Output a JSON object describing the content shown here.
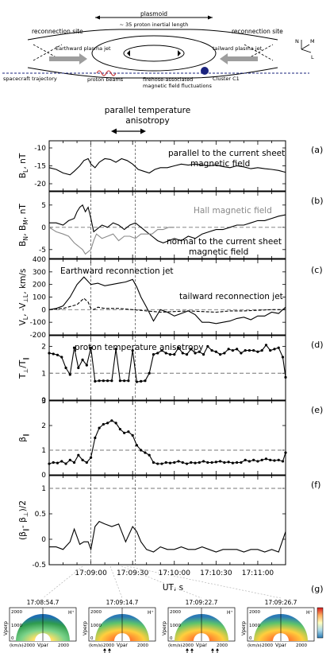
{
  "schematic": {
    "plasmoid_label": "plasmoid",
    "length_label": "~ 35 proton inertial length",
    "left_site_label": "reconnection site",
    "right_site_label": "reconnection site",
    "earthward_jet_label": "Earthward plasma jet",
    "tailward_jet_label": "tailward plasma jet",
    "trajectory_label": "spacecraft trajectory",
    "proton_beams_label": "proton beams",
    "fluctuations_label": "firehose-associated magnetic field fluctuations",
    "cluster_label": "Cluster C1",
    "axis_n": "N",
    "axis_m": "M",
    "axis_l": "L",
    "colors": {
      "trajectory": "#1a237e",
      "cluster_dot": "#1a237e",
      "beams": "#c62828"
    }
  },
  "annotations": {
    "parallel_anisotropy": "parallel temperature anisotropy",
    "parallel_anisotropy_l1": "parallel temperature",
    "parallel_anisotropy_l2": "anisotropy"
  },
  "time_axis": {
    "tick_labels": [
      "17:09:00",
      "17:09:30",
      "17:10:00",
      "17:10:30",
      "17:11:00"
    ],
    "xlabel": "UT, s",
    "range_s": [
      0,
      170
    ],
    "tick_positions_s": [
      30,
      60,
      90,
      120,
      150
    ],
    "vertical_markers_s": [
      30,
      62
    ]
  },
  "chart_data": [
    {
      "type": "line",
      "panel": "(a)",
      "ylabel": "B_L, nT",
      "ylim": [
        -22,
        -8
      ],
      "yticks": [
        -20,
        -15,
        -10
      ],
      "annotation_l1": "parallel to the current sheet",
      "annotation_l2": "magnetic field",
      "series": [
        {
          "x": [
            0,
            5,
            10,
            15,
            18,
            22,
            25,
            28,
            30,
            33,
            36,
            40,
            44,
            48,
            52,
            56,
            60,
            64,
            68,
            72,
            76,
            80,
            85,
            90,
            95,
            100,
            105,
            110,
            115,
            120,
            125,
            130,
            135,
            140,
            145,
            150,
            155,
            160,
            165,
            170
          ],
          "values": [
            -15.5,
            -16,
            -17,
            -17.5,
            -16.5,
            -15,
            -13.5,
            -13,
            -14.5,
            -15.5,
            -14,
            -13,
            -13.2,
            -14,
            -13,
            -13.5,
            -14.5,
            -16,
            -16.5,
            -17,
            -16,
            -15.5,
            -15.5,
            -15,
            -14.5,
            -14.8,
            -14.5,
            -14.8,
            -15,
            -14.8,
            -15.2,
            -15.5,
            -15,
            -15.3,
            -15.8,
            -15.5,
            -15.8,
            -16,
            -16.3,
            -16.8
          ]
        }
      ]
    },
    {
      "type": "line",
      "panel": "(b)",
      "ylabel": "B_N, B_M, nT",
      "ylim": [
        -7,
        8
      ],
      "yticks": [
        -5,
        0,
        5
      ],
      "annotation_grey": "Hall magnetic field",
      "annotation_l1": "normal to the current sheet",
      "annotation_l2": "magnetic field",
      "series": [
        {
          "name": "B_N",
          "x": [
            0,
            5,
            10,
            14,
            18,
            20,
            22,
            24,
            26,
            28,
            30,
            32,
            34,
            38,
            42,
            46,
            50,
            54,
            58,
            62,
            66,
            70,
            74,
            78,
            82,
            86,
            90,
            95,
            100,
            105,
            110,
            115,
            120,
            125,
            130,
            135,
            140,
            145,
            150,
            155,
            160,
            165,
            170
          ],
          "values": [
            1,
            1,
            0.5,
            1.5,
            2,
            3.5,
            4.5,
            5,
            3.5,
            4.5,
            2,
            -1,
            -0.5,
            0.5,
            0,
            1,
            0.5,
            -0.5,
            0.5,
            1,
            0,
            -1,
            -2,
            -3,
            -3.5,
            -3,
            -2.5,
            -3,
            -2,
            -2.5,
            -1.5,
            -1,
            -0.5,
            -0.5,
            0,
            0.5,
            0.5,
            1,
            1.5,
            1.5,
            2,
            2.5,
            2.8
          ]
        },
        {
          "name": "B_M",
          "x": [
            0,
            5,
            10,
            14,
            18,
            20,
            22,
            24,
            26,
            28,
            30,
            32,
            34,
            38,
            42,
            46,
            50,
            54,
            58,
            62,
            66,
            70,
            74,
            78,
            82,
            86,
            90
          ],
          "values": [
            0,
            -1,
            -1.5,
            -2,
            -3.5,
            -4,
            -4.5,
            -5,
            -6,
            -5.5,
            -5,
            -3,
            -1.5,
            -2.5,
            -2,
            -1.5,
            -3,
            -2,
            -2,
            -2.5,
            -1.5,
            -1.5,
            -1.5,
            -0.5,
            -0.5,
            0,
            0
          ]
        }
      ]
    },
    {
      "type": "line",
      "panel": "(c)",
      "ylabel": "V_L, -V_⊥L, km/s",
      "ylim": [
        -200,
        400
      ],
      "yticks": [
        -200,
        -100,
        0,
        100,
        200,
        300,
        400
      ],
      "annotation_earthward": "Earthward reconnection jet",
      "annotation_tailward": "tailward reconnection jet",
      "series": [
        {
          "name": "V_L",
          "x": [
            0,
            5,
            10,
            15,
            20,
            25,
            30,
            35,
            40,
            45,
            50,
            55,
            60,
            63,
            66,
            70,
            75,
            80,
            85,
            90,
            95,
            100,
            105,
            110,
            115,
            120,
            125,
            130,
            135,
            140,
            145,
            150,
            155,
            160,
            165,
            170
          ],
          "values": [
            0,
            10,
            30,
            100,
            200,
            260,
            200,
            210,
            190,
            200,
            210,
            220,
            240,
            180,
            100,
            20,
            -90,
            0,
            -20,
            -50,
            -30,
            -10,
            -40,
            -100,
            -100,
            -110,
            -100,
            -90,
            -70,
            -60,
            -80,
            -50,
            -50,
            -20,
            -30,
            20
          ]
        },
        {
          "name": "-V_⊥L",
          "x": [
            0,
            10,
            20,
            25,
            28,
            30,
            32,
            35,
            40,
            50,
            60,
            70,
            80,
            90,
            100,
            110,
            120,
            130,
            140,
            150,
            160,
            170
          ],
          "values": [
            0,
            10,
            40,
            90,
            60,
            10,
            0,
            20,
            10,
            10,
            0,
            -10,
            -20,
            -15,
            -10,
            -15,
            -20,
            -10,
            -10,
            -5,
            0,
            0
          ]
        }
      ]
    },
    {
      "type": "line",
      "panel": "(d)",
      "ylabel": "T_⊥/T_∥",
      "ylim": [
        0,
        2.4
      ],
      "yticks": [
        0,
        1,
        2
      ],
      "reference_line": 1,
      "annotation": "proton temperature anisotropy",
      "series": [
        {
          "x": [
            0,
            3,
            6,
            9,
            12,
            15,
            18,
            21,
            24,
            27,
            30,
            33,
            36,
            39,
            42,
            45,
            48,
            51,
            54,
            57,
            60,
            63,
            66,
            69,
            72,
            75,
            78,
            81,
            84,
            87,
            90,
            93,
            96,
            99,
            102,
            105,
            108,
            111,
            114,
            117,
            120,
            123,
            126,
            129,
            132,
            135,
            138,
            141,
            144,
            147,
            150,
            153,
            156,
            159,
            162,
            165,
            168,
            170
          ],
          "values": [
            1.75,
            1.72,
            1.68,
            1.6,
            1.2,
            0.95,
            1.95,
            1.2,
            1.5,
            1.3,
            1.95,
            0.7,
            0.72,
            0.72,
            0.72,
            0.72,
            1.9,
            0.72,
            0.72,
            0.72,
            1.85,
            0.68,
            0.7,
            0.72,
            1.0,
            1.7,
            1.75,
            1.85,
            1.75,
            1.7,
            1.7,
            1.95,
            1.75,
            1.7,
            1.9,
            1.75,
            1.8,
            1.7,
            2.0,
            1.85,
            1.8,
            1.7,
            1.75,
            1.9,
            1.85,
            1.9,
            1.75,
            1.85,
            1.85,
            1.85,
            1.8,
            1.85,
            2.05,
            1.85,
            1.9,
            1.95,
            1.6,
            0.85
          ]
        }
      ]
    },
    {
      "type": "line",
      "panel": "(e)",
      "ylabel": "β_∥",
      "ylim": [
        0,
        3
      ],
      "yticks": [
        0,
        1,
        2,
        3
      ],
      "reference_line": 1,
      "series": [
        {
          "x": [
            0,
            3,
            6,
            9,
            12,
            15,
            18,
            21,
            24,
            27,
            30,
            33,
            36,
            39,
            42,
            45,
            48,
            51,
            54,
            57,
            60,
            63,
            66,
            69,
            72,
            75,
            78,
            81,
            84,
            87,
            90,
            93,
            96,
            99,
            102,
            105,
            108,
            111,
            114,
            117,
            120,
            123,
            126,
            129,
            132,
            135,
            138,
            141,
            144,
            147,
            150,
            153,
            156,
            159,
            162,
            165,
            168,
            170
          ],
          "values": [
            0.45,
            0.5,
            0.48,
            0.55,
            0.45,
            0.6,
            0.5,
            0.8,
            0.6,
            0.5,
            0.7,
            1.5,
            1.9,
            2.05,
            2.1,
            2.2,
            2.1,
            1.85,
            1.7,
            1.75,
            1.6,
            1.2,
            1.0,
            0.9,
            0.8,
            0.5,
            0.45,
            0.45,
            0.5,
            0.48,
            0.5,
            0.55,
            0.5,
            0.45,
            0.5,
            0.48,
            0.5,
            0.55,
            0.5,
            0.5,
            0.52,
            0.55,
            0.5,
            0.52,
            0.48,
            0.5,
            0.5,
            0.6,
            0.55,
            0.6,
            0.55,
            0.6,
            0.65,
            0.6,
            0.58,
            0.6,
            0.55,
            0.9
          ]
        }
      ]
    },
    {
      "type": "line",
      "panel": "(f)",
      "ylabel": "(β_∥ - β_⊥)/2",
      "ylim": [
        -0.5,
        1.25
      ],
      "yticks": [
        -0.5,
        0,
        0.5,
        1
      ],
      "reference_line": 1,
      "series": [
        {
          "x": [
            0,
            5,
            10,
            15,
            18,
            22,
            25,
            28,
            30,
            33,
            36,
            40,
            45,
            50,
            55,
            60,
            63,
            66,
            70,
            75,
            80,
            85,
            90,
            95,
            100,
            105,
            110,
            115,
            120,
            125,
            130,
            135,
            140,
            145,
            150,
            155,
            160,
            165,
            170
          ],
          "values": [
            -0.15,
            -0.15,
            -0.2,
            -0.05,
            0.2,
            -0.1,
            -0.05,
            -0.05,
            -0.2,
            0.25,
            0.35,
            0.3,
            0.25,
            0.3,
            -0.05,
            0.25,
            0.15,
            -0.05,
            -0.2,
            -0.25,
            -0.15,
            -0.2,
            -0.2,
            -0.15,
            -0.2,
            -0.2,
            -0.15,
            -0.2,
            -0.25,
            -0.2,
            -0.2,
            -0.2,
            -0.25,
            -0.2,
            -0.2,
            -0.25,
            -0.2,
            -0.25,
            0.15
          ]
        }
      ]
    }
  ],
  "vdf": {
    "panel_tag": "(g)",
    "xlabel": "Vpar",
    "ylabel": "Vperp",
    "units": "(km/s)",
    "tick_2000": "2000",
    "tick_neg2000": "-2000",
    "tick_1000": "1000",
    "tick_0": "0",
    "species": "H⁺",
    "beams_caption": "proton beams",
    "panels": [
      {
        "time": "17:08:54.7",
        "has_beam_arrows": false
      },
      {
        "time": "17:09:14.7",
        "has_beam_arrows": true
      },
      {
        "time": "17:09:22.7",
        "has_beam_arrows": true
      },
      {
        "time": "17:09:26.7",
        "has_beam_arrows": false
      }
    ]
  }
}
